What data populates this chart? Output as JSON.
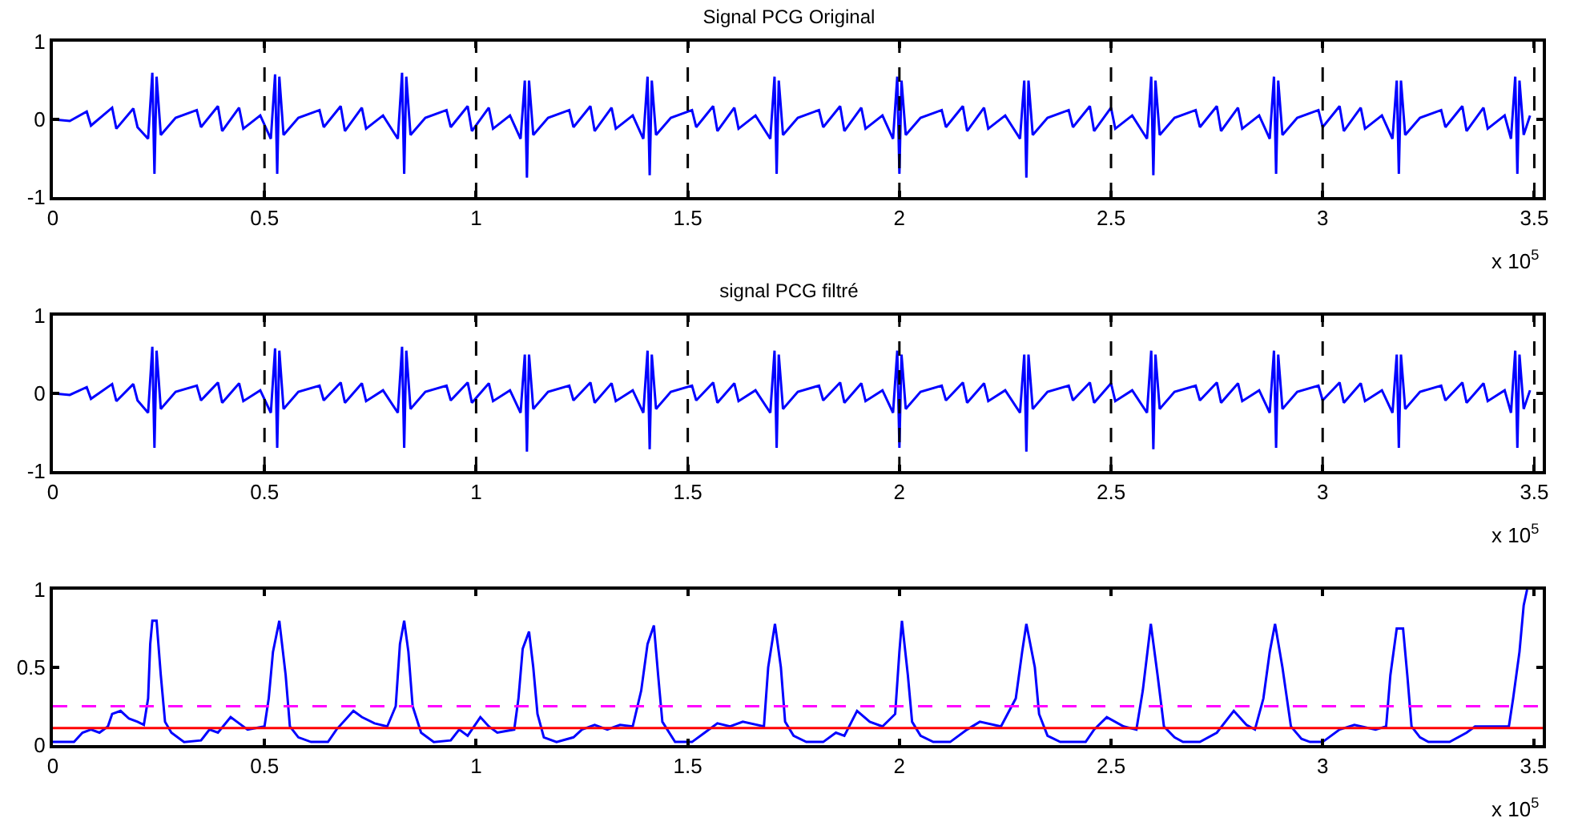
{
  "chart_data": [
    {
      "type": "line",
      "title": "Signal PCG Original",
      "annotations": [
        "x 10$^{5}$"
      ],
      "xlim": [
        0,
        3.52
      ],
      "xticks": [
        0,
        0.5,
        1,
        1.5,
        2,
        2.5,
        3,
        3.5
      ],
      "ylim": [
        -1,
        1
      ],
      "yticks": [
        -1,
        0,
        1
      ],
      "ref_lines": [
        {
          "axis": "x",
          "value": 0.5,
          "color": "#000000",
          "line_style": "dashed"
        },
        {
          "axis": "x",
          "value": 1,
          "color": "#000000",
          "line_style": "dashed"
        },
        {
          "axis": "x",
          "value": 1.5,
          "color": "#000000",
          "line_style": "dashed"
        },
        {
          "axis": "x",
          "value": 2,
          "color": "#000000",
          "line_style": "dashed"
        },
        {
          "axis": "x",
          "value": 2.5,
          "color": "#000000",
          "line_style": "dashed"
        },
        {
          "axis": "x",
          "value": 3,
          "color": "#000000",
          "line_style": "dashed"
        },
        {
          "axis": "x",
          "value": 3.5,
          "color": "#000000",
          "line_style": "dashed"
        }
      ],
      "series": [
        {
          "color": "#0000ff",
          "x": [
            0,
            0.04,
            0.08,
            0.09,
            0.14,
            0.15,
            0.19,
            0.2,
            0.225,
            0.235,
            0.24,
            0.245,
            0.255,
            0.29,
            0.34,
            0.35,
            0.39,
            0.4,
            0.44,
            0.45,
            0.49,
            0.515,
            0.525,
            0.53,
            0.535,
            0.545,
            0.58,
            0.63,
            0.64,
            0.68,
            0.69,
            0.73,
            0.74,
            0.78,
            0.815,
            0.825,
            0.83,
            0.835,
            0.845,
            0.88,
            0.93,
            0.94,
            0.98,
            0.99,
            1.03,
            1.04,
            1.08,
            1.105,
            1.115,
            1.12,
            1.125,
            1.135,
            1.17,
            1.22,
            1.23,
            1.27,
            1.28,
            1.32,
            1.33,
            1.37,
            1.395,
            1.405,
            1.41,
            1.415,
            1.425,
            1.46,
            1.51,
            1.52,
            1.56,
            1.57,
            1.61,
            1.62,
            1.66,
            1.695,
            1.705,
            1.71,
            1.715,
            1.725,
            1.76,
            1.81,
            1.82,
            1.86,
            1.87,
            1.91,
            1.92,
            1.96,
            1.985,
            1.995,
            2,
            2.005,
            2.015,
            2.05,
            2.1,
            2.11,
            2.15,
            2.16,
            2.2,
            2.21,
            2.25,
            2.285,
            2.295,
            2.3,
            2.305,
            2.315,
            2.35,
            2.4,
            2.41,
            2.45,
            2.46,
            2.5,
            2.51,
            2.55,
            2.585,
            2.595,
            2.6,
            2.605,
            2.615,
            2.65,
            2.7,
            2.71,
            2.75,
            2.76,
            2.8,
            2.81,
            2.85,
            2.875,
            2.885,
            2.89,
            2.895,
            2.905,
            2.94,
            2.99,
            3,
            3.04,
            3.05,
            3.09,
            3.1,
            3.14,
            3.165,
            3.175,
            3.18,
            3.185,
            3.195,
            3.23,
            3.28,
            3.29,
            3.33,
            3.34,
            3.38,
            3.39,
            3.43,
            3.445,
            3.455,
            3.46,
            3.465,
            3.475,
            3.49
          ],
          "values": [
            0,
            -0.02,
            0.1,
            -0.08,
            0.15,
            -0.12,
            0.14,
            -0.1,
            -0.25,
            0.6,
            -0.7,
            0.55,
            -0.2,
            0.02,
            0.12,
            -0.1,
            0.17,
            -0.15,
            0.15,
            -0.12,
            0.05,
            -0.25,
            0.58,
            -0.7,
            0.55,
            -0.2,
            0.02,
            0.12,
            -0.1,
            0.17,
            -0.15,
            0.15,
            -0.12,
            0.05,
            -0.25,
            0.6,
            -0.7,
            0.55,
            -0.2,
            0.02,
            0.12,
            -0.1,
            0.17,
            -0.15,
            0.15,
            -0.12,
            0.05,
            -0.25,
            0.5,
            -0.75,
            0.5,
            -0.2,
            0.02,
            0.12,
            -0.1,
            0.17,
            -0.15,
            0.15,
            -0.12,
            0.05,
            -0.25,
            0.55,
            -0.72,
            0.5,
            -0.2,
            0.02,
            0.12,
            -0.1,
            0.17,
            -0.15,
            0.15,
            -0.12,
            0.05,
            -0.25,
            0.55,
            -0.7,
            0.5,
            -0.2,
            0.02,
            0.12,
            -0.1,
            0.17,
            -0.15,
            0.15,
            -0.12,
            0.05,
            -0.25,
            0.55,
            -0.7,
            0.5,
            -0.2,
            0.02,
            0.12,
            -0.1,
            0.17,
            -0.15,
            0.15,
            -0.12,
            0.05,
            -0.25,
            0.5,
            -0.75,
            0.5,
            -0.2,
            0.02,
            0.12,
            -0.1,
            0.17,
            -0.15,
            0.15,
            -0.12,
            0.05,
            -0.25,
            0.55,
            -0.72,
            0.5,
            -0.2,
            0.02,
            0.12,
            -0.1,
            0.17,
            -0.15,
            0.15,
            -0.12,
            0.05,
            -0.25,
            0.55,
            -0.7,
            0.5,
            -0.2,
            0.02,
            0.12,
            -0.1,
            0.17,
            -0.15,
            0.15,
            -0.12,
            0.05,
            -0.25,
            0.5,
            -0.7,
            0.5,
            -0.2,
            0.02,
            0.12,
            -0.1,
            0.17,
            -0.15,
            0.15,
            -0.12,
            0.05,
            -0.25,
            0.55,
            -0.7,
            0.5,
            -0.2,
            0.05
          ]
        }
      ]
    },
    {
      "type": "line",
      "title": "signal PCG filtré",
      "annotations": [
        "x 10$^{5}$"
      ],
      "xlim": [
        0,
        3.52
      ],
      "xticks": [
        0,
        0.5,
        1,
        1.5,
        2,
        2.5,
        3,
        3.5
      ],
      "ylim": [
        -1,
        1
      ],
      "yticks": [
        -1,
        0,
        1
      ],
      "ref_lines": [
        {
          "axis": "x",
          "value": 0.5,
          "color": "#000000",
          "line_style": "dashed"
        },
        {
          "axis": "x",
          "value": 1,
          "color": "#000000",
          "line_style": "dashed"
        },
        {
          "axis": "x",
          "value": 1.5,
          "color": "#000000",
          "line_style": "dashed"
        },
        {
          "axis": "x",
          "value": 2,
          "color": "#000000",
          "line_style": "dashed"
        },
        {
          "axis": "x",
          "value": 2.5,
          "color": "#000000",
          "line_style": "dashed"
        },
        {
          "axis": "x",
          "value": 3,
          "color": "#000000",
          "line_style": "dashed"
        },
        {
          "axis": "x",
          "value": 3.5,
          "color": "#000000",
          "line_style": "dashed"
        }
      ],
      "series": [
        {
          "color": "#0000ff",
          "x": [
            0,
            0.04,
            0.08,
            0.09,
            0.14,
            0.15,
            0.19,
            0.2,
            0.225,
            0.235,
            0.24,
            0.245,
            0.255,
            0.29,
            0.34,
            0.35,
            0.39,
            0.4,
            0.44,
            0.45,
            0.49,
            0.515,
            0.525,
            0.53,
            0.535,
            0.545,
            0.58,
            0.63,
            0.64,
            0.68,
            0.69,
            0.73,
            0.74,
            0.78,
            0.815,
            0.825,
            0.83,
            0.835,
            0.845,
            0.88,
            0.93,
            0.94,
            0.98,
            0.99,
            1.03,
            1.04,
            1.08,
            1.105,
            1.115,
            1.12,
            1.125,
            1.135,
            1.17,
            1.22,
            1.23,
            1.27,
            1.28,
            1.32,
            1.33,
            1.37,
            1.395,
            1.405,
            1.41,
            1.415,
            1.425,
            1.46,
            1.51,
            1.52,
            1.56,
            1.57,
            1.61,
            1.62,
            1.66,
            1.695,
            1.705,
            1.71,
            1.715,
            1.725,
            1.76,
            1.81,
            1.82,
            1.86,
            1.87,
            1.91,
            1.92,
            1.96,
            1.985,
            1.995,
            2,
            2.005,
            2.015,
            2.05,
            2.1,
            2.11,
            2.15,
            2.16,
            2.2,
            2.21,
            2.25,
            2.285,
            2.295,
            2.3,
            2.305,
            2.315,
            2.35,
            2.4,
            2.41,
            2.45,
            2.46,
            2.5,
            2.51,
            2.55,
            2.585,
            2.595,
            2.6,
            2.605,
            2.615,
            2.65,
            2.7,
            2.71,
            2.75,
            2.76,
            2.8,
            2.81,
            2.85,
            2.875,
            2.885,
            2.89,
            2.895,
            2.905,
            2.94,
            2.99,
            3,
            3.04,
            3.05,
            3.09,
            3.1,
            3.14,
            3.165,
            3.175,
            3.18,
            3.185,
            3.195,
            3.23,
            3.28,
            3.29,
            3.33,
            3.34,
            3.38,
            3.39,
            3.43,
            3.445,
            3.455,
            3.46,
            3.465,
            3.475,
            3.49
          ],
          "values": [
            0,
            -0.02,
            0.08,
            -0.07,
            0.12,
            -0.1,
            0.12,
            -0.09,
            -0.25,
            0.6,
            -0.7,
            0.55,
            -0.2,
            0.02,
            0.1,
            -0.09,
            0.14,
            -0.12,
            0.13,
            -0.1,
            0.04,
            -0.25,
            0.58,
            -0.7,
            0.55,
            -0.2,
            0.02,
            0.1,
            -0.09,
            0.14,
            -0.12,
            0.13,
            -0.1,
            0.04,
            -0.25,
            0.6,
            -0.7,
            0.55,
            -0.2,
            0.02,
            0.1,
            -0.09,
            0.14,
            -0.12,
            0.13,
            -0.1,
            0.04,
            -0.25,
            0.5,
            -0.75,
            0.5,
            -0.2,
            0.02,
            0.1,
            -0.09,
            0.14,
            -0.12,
            0.13,
            -0.1,
            0.04,
            -0.25,
            0.55,
            -0.72,
            0.5,
            -0.2,
            0.02,
            0.1,
            -0.09,
            0.14,
            -0.12,
            0.13,
            -0.1,
            0.04,
            -0.25,
            0.55,
            -0.7,
            0.5,
            -0.2,
            0.02,
            0.1,
            -0.09,
            0.14,
            -0.12,
            0.13,
            -0.1,
            0.04,
            -0.25,
            0.55,
            -0.7,
            0.5,
            -0.2,
            0.02,
            0.1,
            -0.09,
            0.14,
            -0.12,
            0.13,
            -0.1,
            0.04,
            -0.25,
            0.5,
            -0.75,
            0.5,
            -0.2,
            0.02,
            0.1,
            -0.09,
            0.14,
            -0.12,
            0.13,
            -0.1,
            0.04,
            -0.25,
            0.55,
            -0.72,
            0.5,
            -0.2,
            0.02,
            0.1,
            -0.09,
            0.14,
            -0.12,
            0.13,
            -0.1,
            0.04,
            -0.25,
            0.55,
            -0.7,
            0.5,
            -0.2,
            0.02,
            0.1,
            -0.09,
            0.14,
            -0.12,
            0.13,
            -0.1,
            0.04,
            -0.25,
            0.5,
            -0.7,
            0.5,
            -0.2,
            0.02,
            0.1,
            -0.09,
            0.14,
            -0.12,
            0.13,
            -0.1,
            0.04,
            -0.25,
            0.55,
            -0.7,
            0.5,
            -0.2,
            0.04
          ]
        }
      ]
    },
    {
      "type": "line",
      "annotations": [
        "x 10$^{5}$"
      ],
      "xlim": [
        0,
        3.52
      ],
      "xticks": [
        0,
        0.5,
        1,
        1.5,
        2,
        2.5,
        3,
        3.5
      ],
      "ylim": [
        0,
        1
      ],
      "yticks": [
        0,
        0.5,
        1
      ],
      "ref_lines": [
        {
          "axis": "y",
          "value": 0.25,
          "color": "#ff00ff",
          "line_style": "dashed"
        },
        {
          "axis": "y",
          "value": 0.11,
          "color": "#ff0000",
          "line_style": "solid"
        }
      ],
      "series": [
        {
          "color": "#0000ff",
          "x": [
            0,
            0.05,
            0.07,
            0.09,
            0.11,
            0.13,
            0.14,
            0.16,
            0.18,
            0.2,
            0.215,
            0.225,
            0.23,
            0.235,
            0.245,
            0.255,
            0.265,
            0.28,
            0.31,
            0.35,
            0.37,
            0.39,
            0.42,
            0.44,
            0.46,
            0.5,
            0.51,
            0.52,
            0.535,
            0.55,
            0.56,
            0.58,
            0.61,
            0.65,
            0.67,
            0.71,
            0.73,
            0.76,
            0.79,
            0.81,
            0.82,
            0.83,
            0.84,
            0.85,
            0.87,
            0.9,
            0.94,
            0.96,
            0.98,
            1.01,
            1.03,
            1.05,
            1.09,
            1.1,
            1.11,
            1.125,
            1.135,
            1.145,
            1.16,
            1.19,
            1.23,
            1.25,
            1.28,
            1.31,
            1.34,
            1.37,
            1.39,
            1.405,
            1.42,
            1.43,
            1.44,
            1.47,
            1.51,
            1.54,
            1.57,
            1.6,
            1.63,
            1.68,
            1.69,
            1.706,
            1.72,
            1.73,
            1.75,
            1.78,
            1.82,
            1.85,
            1.87,
            1.9,
            1.93,
            1.96,
            1.99,
            2,
            2.006,
            2.02,
            2.03,
            2.05,
            2.08,
            2.12,
            2.16,
            2.19,
            2.24,
            2.275,
            2.29,
            2.3,
            2.32,
            2.33,
            2.35,
            2.38,
            2.44,
            2.46,
            2.49,
            2.53,
            2.56,
            2.575,
            2.594,
            2.61,
            2.625,
            2.65,
            2.67,
            2.71,
            2.75,
            2.79,
            2.82,
            2.84,
            2.86,
            2.875,
            2.8875,
            2.905,
            2.925,
            2.95,
            2.97,
            3,
            3.04,
            3.075,
            3.125,
            3.15,
            3.16,
            3.175,
            3.19,
            3.2,
            3.21,
            3.23,
            3.25,
            3.3,
            3.34,
            3.36,
            3.44,
            3.45,
            3.465,
            3.475,
            3.483
          ],
          "values": [
            0.02,
            0.02,
            0.08,
            0.1,
            0.08,
            0.12,
            0.2,
            0.22,
            0.17,
            0.15,
            0.13,
            0.3,
            0.65,
            0.8,
            0.8,
            0.45,
            0.15,
            0.08,
            0.02,
            0.03,
            0.1,
            0.08,
            0.18,
            0.14,
            0.1,
            0.12,
            0.3,
            0.6,
            0.8,
            0.45,
            0.12,
            0.05,
            0.02,
            0.02,
            0.1,
            0.22,
            0.18,
            0.14,
            0.12,
            0.25,
            0.65,
            0.8,
            0.6,
            0.25,
            0.08,
            0.02,
            0.03,
            0.1,
            0.06,
            0.18,
            0.12,
            0.08,
            0.1,
            0.3,
            0.62,
            0.73,
            0.5,
            0.2,
            0.05,
            0.02,
            0.05,
            0.1,
            0.13,
            0.1,
            0.13,
            0.12,
            0.35,
            0.65,
            0.77,
            0.45,
            0.15,
            0.02,
            0.02,
            0.08,
            0.14,
            0.12,
            0.15,
            0.12,
            0.5,
            0.78,
            0.5,
            0.15,
            0.06,
            0.02,
            0.02,
            0.08,
            0.06,
            0.22,
            0.15,
            0.12,
            0.2,
            0.6,
            0.8,
            0.45,
            0.15,
            0.06,
            0.02,
            0.02,
            0.1,
            0.15,
            0.12,
            0.3,
            0.6,
            0.78,
            0.5,
            0.2,
            0.06,
            0.02,
            0.02,
            0.1,
            0.18,
            0.12,
            0.1,
            0.35,
            0.78,
            0.45,
            0.12,
            0.05,
            0.02,
            0.02,
            0.08,
            0.22,
            0.13,
            0.1,
            0.3,
            0.6,
            0.78,
            0.5,
            0.12,
            0.04,
            0.02,
            0.02,
            0.1,
            0.13,
            0.1,
            0.12,
            0.45,
            0.75,
            0.75,
            0.45,
            0.12,
            0.05,
            0.02,
            0.02,
            0.08,
            0.12,
            0.12,
            0.3,
            0.6,
            0.9,
            1.0
          ]
        }
      ]
    }
  ]
}
